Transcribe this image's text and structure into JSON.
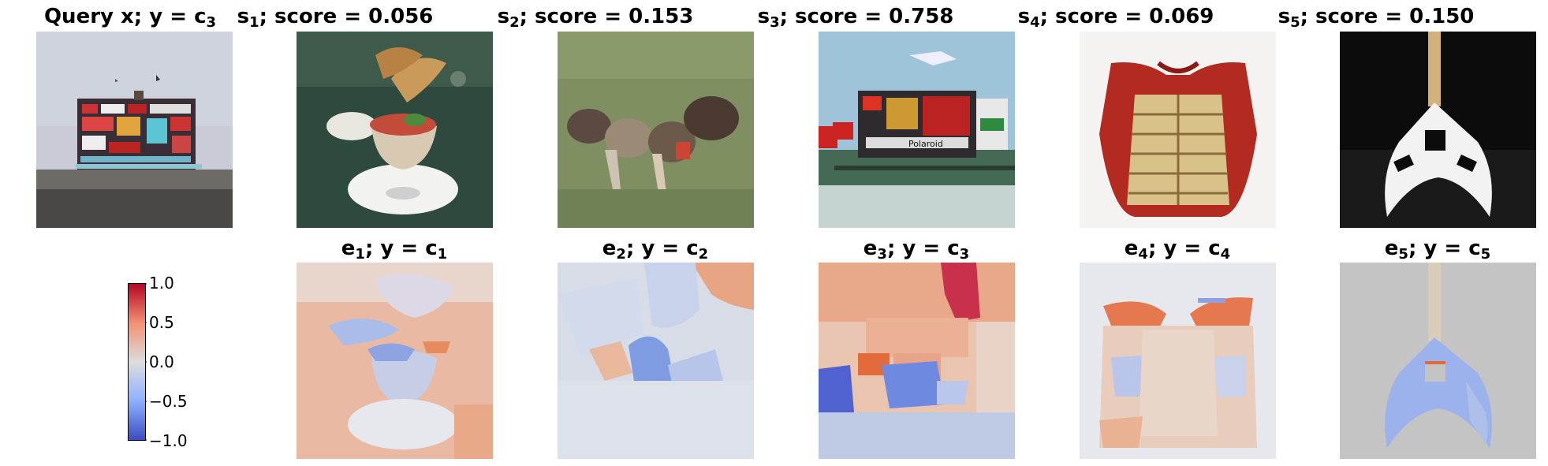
{
  "query": {
    "title_prefix": "Query x; y",
    "title_eq": " = ",
    "title_c": "c",
    "title_sub": "3"
  },
  "samples": [
    {
      "letter": "s",
      "sub": "1",
      "suffix": "; score = 0.056",
      "score": 0.056
    },
    {
      "letter": "s",
      "sub": "2",
      "suffix": "; score = 0.153",
      "score": 0.153
    },
    {
      "letter": "s",
      "sub": "3",
      "suffix": "; score = 0.758",
      "score": 0.758
    },
    {
      "letter": "s",
      "sub": "4",
      "suffix": "; score = 0.069",
      "score": 0.069
    },
    {
      "letter": "s",
      "sub": "5",
      "suffix": "; score = 0.150",
      "score": 0.15
    }
  ],
  "explanations": [
    {
      "letter": "e",
      "sub": "1",
      "mid": "; y = ",
      "c": "c",
      "csub": "1"
    },
    {
      "letter": "e",
      "sub": "2",
      "mid": "; y = ",
      "c": "c",
      "csub": "2"
    },
    {
      "letter": "e",
      "sub": "3",
      "mid": "; y = ",
      "c": "c",
      "csub": "3"
    },
    {
      "letter": "e",
      "sub": "4",
      "mid": "; y = ",
      "c": "c",
      "csub": "4"
    },
    {
      "letter": "e",
      "sub": "5",
      "mid": "; y = ",
      "c": "c",
      "csub": "5"
    }
  ],
  "colorbar": {
    "ticks": [
      "1.0",
      "0.5",
      "0.0",
      "−0.5",
      "−1.0"
    ],
    "range": [
      -1.0,
      1.0
    ],
    "colormap": "coolwarm",
    "colors": {
      "high": "#b40426",
      "mid": "#dddddd",
      "low": "#3b4cc0"
    }
  }
}
